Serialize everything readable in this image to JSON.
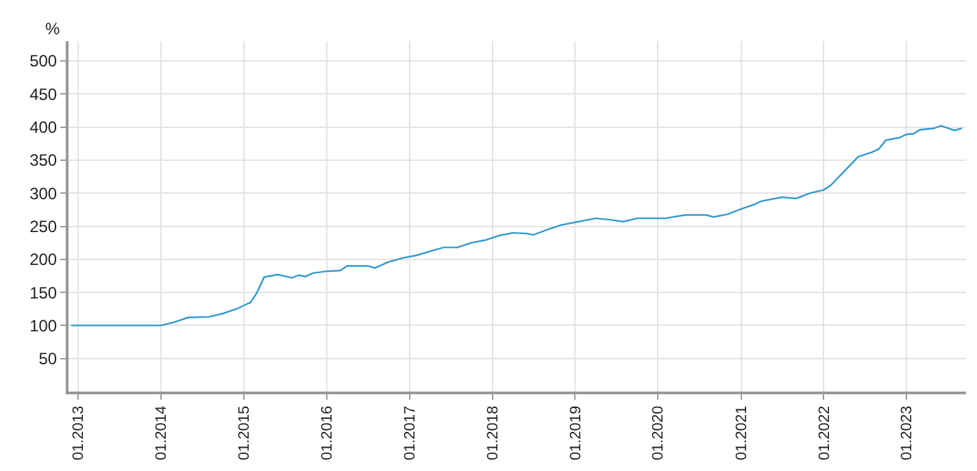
{
  "chart_data": {
    "type": "line",
    "ylabel": "%",
    "x": [
      "2012-12",
      "2013-03",
      "2013-06",
      "2013-09",
      "2013-12",
      "2014-01",
      "2014-03",
      "2014-05",
      "2014-08",
      "2014-10",
      "2014-12",
      "2015-02",
      "2015-03",
      "2015-04",
      "2015-06",
      "2015-08",
      "2015-09",
      "2015-10",
      "2015-11",
      "2016-01",
      "2016-03",
      "2016-04",
      "2016-07",
      "2016-08",
      "2016-10",
      "2016-12",
      "2017-02",
      "2017-04",
      "2017-06",
      "2017-08",
      "2017-10",
      "2017-12",
      "2018-02",
      "2018-04",
      "2018-06",
      "2018-07",
      "2018-09",
      "2018-11",
      "2019-01",
      "2019-04",
      "2019-06",
      "2019-08",
      "2019-10",
      "2020-01",
      "2020-02",
      "2020-05",
      "2020-08",
      "2020-09",
      "2020-11",
      "2021-01",
      "2021-03",
      "2021-04",
      "2021-07",
      "2021-09",
      "2021-11",
      "2022-01",
      "2022-02",
      "2022-04",
      "2022-06",
      "2022-08",
      "2022-09",
      "2022-10",
      "2022-12",
      "2023-01",
      "2023-02",
      "2023-03",
      "2023-05",
      "2023-06",
      "2023-08",
      "2023-09"
    ],
    "series": [
      {
        "color": "#3399cc",
        "values": [
          100,
          100,
          100,
          100,
          100,
          100,
          105,
          112,
          113,
          118,
          125,
          135,
          150,
          173,
          177,
          172,
          176,
          174,
          179,
          182,
          183,
          190,
          190,
          187,
          196,
          202,
          206,
          212,
          218,
          218,
          225,
          229,
          236,
          240,
          239,
          237,
          245,
          252,
          256,
          262,
          260,
          257,
          262,
          262,
          262,
          267,
          267,
          264,
          268,
          276,
          283,
          288,
          294,
          292,
          300,
          305,
          312,
          333,
          355,
          362,
          367,
          380,
          384,
          389,
          390,
          396,
          398,
          402,
          395,
          398
        ]
      }
    ],
    "xlim": [
      "2012-11-20",
      "2023-09-20"
    ],
    "xticks": [
      {
        "value": "2013-01",
        "label": "01.2013"
      },
      {
        "value": "2014-01",
        "label": "01.2014"
      },
      {
        "value": "2015-01",
        "label": "01.2015"
      },
      {
        "value": "2016-01",
        "label": "01.2016"
      },
      {
        "value": "2017-01",
        "label": "01.2017"
      },
      {
        "value": "2018-01",
        "label": "01.2018"
      },
      {
        "value": "2019-01",
        "label": "01.2019"
      },
      {
        "value": "2020-01",
        "label": "01.2020"
      },
      {
        "value": "2021-01",
        "label": "01.2021"
      },
      {
        "value": "2022-01",
        "label": "01.2022"
      },
      {
        "value": "2023-01",
        "label": "01.2023"
      }
    ],
    "ylim": [
      0,
      530
    ],
    "yticks": [
      50,
      100,
      150,
      200,
      250,
      300,
      350,
      400,
      450,
      500
    ],
    "grid": true,
    "legend": false,
    "marker": "none",
    "line_style": "solid"
  }
}
